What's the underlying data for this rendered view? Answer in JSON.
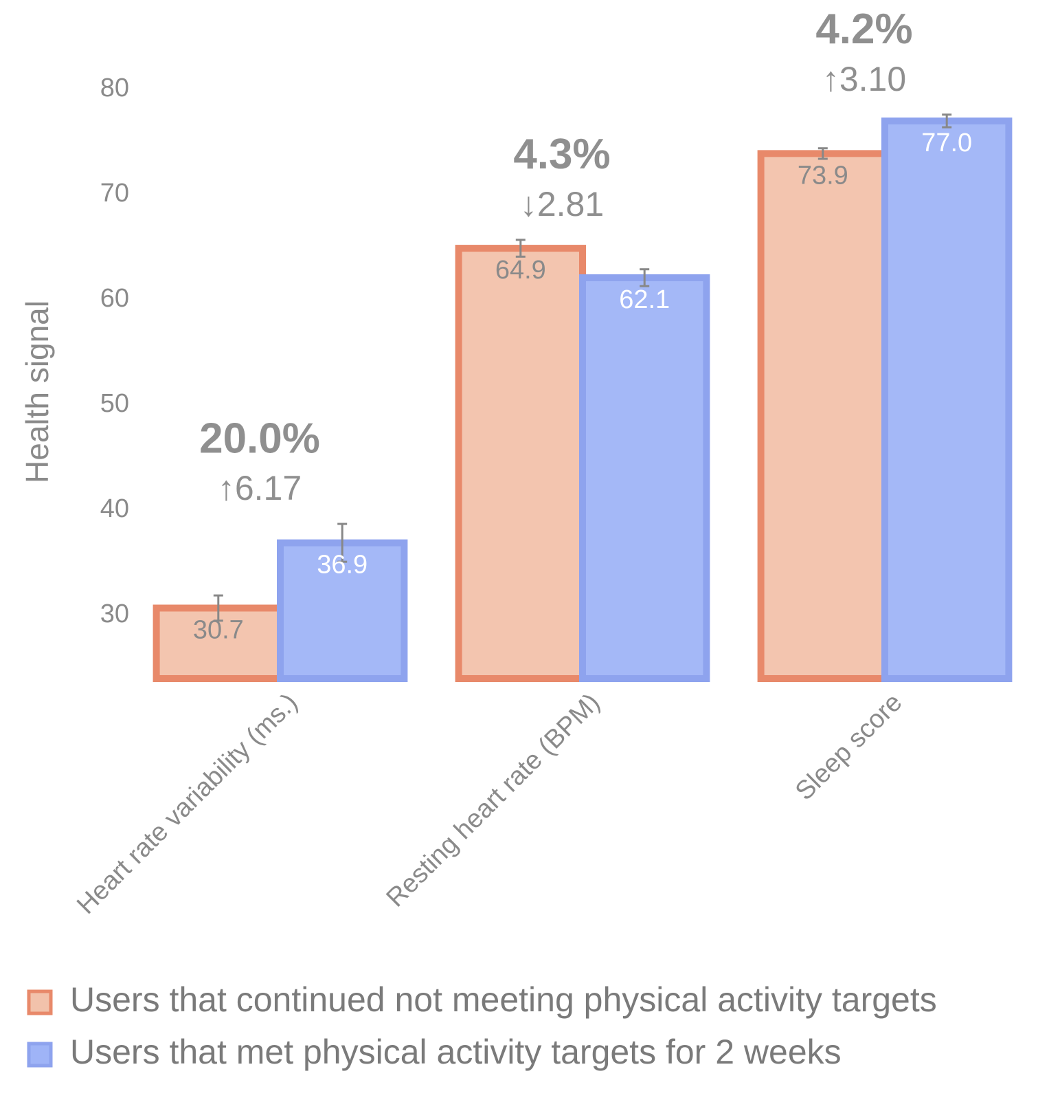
{
  "chart_data": {
    "type": "bar",
    "ylabel": "Health signal",
    "categories": [
      "Heart rate variability (ms.)",
      "Resting heart rate (BPM)",
      "Sleep score"
    ],
    "series": [
      {
        "name": "Users that continued not meeting physical activity targets",
        "color": "#f2c2ab",
        "edge": "#e8896a",
        "values": [
          30.7,
          64.9,
          73.9
        ],
        "value_labels": [
          "30.7",
          "64.9",
          "73.9"
        ],
        "errors": [
          1.2,
          0.8,
          0.5
        ]
      },
      {
        "name": "Users that met physical activity targets for 2 weeks",
        "color": "#9fb4f7",
        "edge": "#8ea3ee",
        "values": [
          36.9,
          62.1,
          77.0
        ],
        "value_labels": [
          "36.9",
          "62.1",
          "77.0"
        ],
        "errors": [
          1.8,
          0.8,
          0.6
        ]
      }
    ],
    "annotations": [
      {
        "percent": "20.0%",
        "change": "↑6.17"
      },
      {
        "percent": "4.3%",
        "change": "↓2.81"
      },
      {
        "percent": "4.2%",
        "change": "↑3.10"
      }
    ],
    "ylim": [
      24,
      80
    ],
    "yticks": [
      30,
      40,
      50,
      60,
      70,
      80
    ],
    "grid": false
  }
}
